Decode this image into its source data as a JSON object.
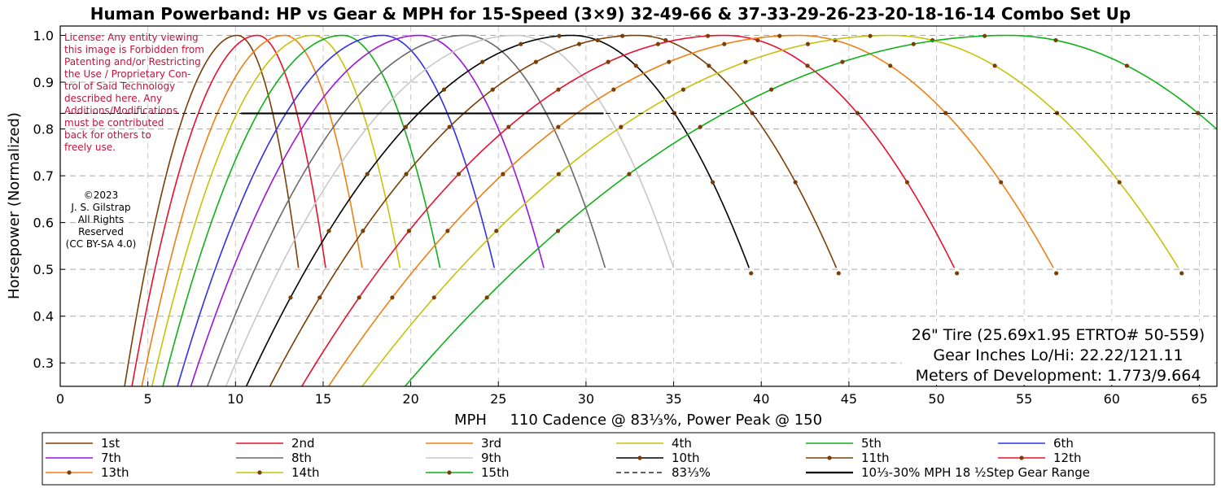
{
  "chart_data": {
    "type": "line",
    "title": "Human Powerband: HP vs Gear & MPH for 15-Speed (3×9) 32-49-66 & 37-33-29-26-23-20-18-16-14 Combo Set Up",
    "xlabel": "MPH     110 Cadence @ 83⅓%, Power Peak @ 150",
    "ylabel": "Horsepower (Normalized)",
    "xlim": [
      0,
      66
    ],
    "ylim": [
      0.25,
      1.02
    ],
    "x_ticks": [
      "0",
      "5",
      "10",
      "15",
      "20",
      "25",
      "30",
      "35",
      "40",
      "45",
      "50",
      "55",
      "60",
      "65"
    ],
    "y_ticks": [
      "0.3",
      "0.4",
      "0.5",
      "0.6",
      "0.7",
      "0.8",
      "0.9",
      "1.0"
    ],
    "grid": true,
    "legend_position": "bottom",
    "series": [
      {
        "name": "1st",
        "peak_mph": 10.1,
        "color": "#7a3e06",
        "markers": false
      },
      {
        "name": "2nd",
        "peak_mph": 11.25,
        "color": "#e8102e",
        "markers": false
      },
      {
        "name": "3rd",
        "peak_mph": 12.8,
        "color": "#f07f12",
        "markers": false
      },
      {
        "name": "4th",
        "peak_mph": 14.4,
        "color": "#c6c20c",
        "markers": false
      },
      {
        "name": "5th",
        "peak_mph": 16.1,
        "color": "#10b01a",
        "markers": false
      },
      {
        "name": "6th",
        "peak_mph": 18.4,
        "color": "#3030e6",
        "markers": false
      },
      {
        "name": "7th",
        "peak_mph": 20.5,
        "color": "#9a14e0",
        "markers": false
      },
      {
        "name": "8th",
        "peak_mph": 23.1,
        "color": "#6a6a6a",
        "markers": false
      },
      {
        "name": "9th",
        "peak_mph": 26.0,
        "color": "#c8c8c8",
        "markers": false
      },
      {
        "name": "10th",
        "peak_mph": 29.2,
        "color": "#000000",
        "markers": true
      },
      {
        "name": "11th",
        "peak_mph": 32.9,
        "color": "#7a3e06",
        "markers": true
      },
      {
        "name": "12th",
        "peak_mph": 37.9,
        "color": "#e8102e",
        "markers": true
      },
      {
        "name": "13th",
        "peak_mph": 42.1,
        "color": "#f07f12",
        "markers": true
      },
      {
        "name": "14th",
        "peak_mph": 47.4,
        "color": "#c6c20c",
        "markers": true
      },
      {
        "name": "15th",
        "peak_mph": 54.1,
        "color": "#10b01a",
        "markers": true
      }
    ],
    "reference_lines": [
      {
        "name": "83⅓%",
        "y": 0.8333,
        "x_from": 0,
        "x_to": 66,
        "style": "dashed",
        "color": "#000000"
      },
      {
        "name": "10⅓-30% MPH  18 ½Step Gear Range",
        "y": 0.8333,
        "x_from": 10.33,
        "x_to": 31,
        "style": "solid",
        "color": "#000000"
      }
    ]
  },
  "license_note": "License: Any entity viewing this image is Forbidden from Patenting and/or Restricting the Use / Proprietary Control of Said Technology described here. Any Additions/Modifications must be contributed back for others to freely use.",
  "copyright_lines": [
    "©2023",
    "J. S. Gilstrap",
    "All Rights",
    "Reserved",
    "(CC BY-SA 4.0)"
  ],
  "info_lines": [
    "26\" Tire (25.69x1.95 ETRTO# 50-559)",
    "Gear Inches Lo/Hi: 22.22/121.11",
    "Meters of Development: 1.773/9.664"
  ]
}
